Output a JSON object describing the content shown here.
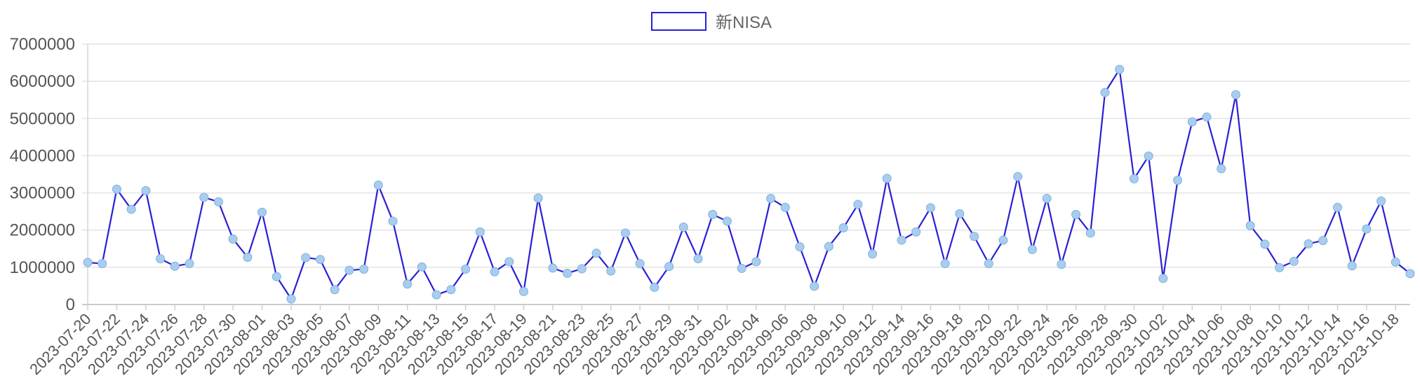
{
  "chart_data": {
    "type": "line",
    "legend": {
      "position": "top-center"
    },
    "series": [
      {
        "name": "新NISA",
        "color": "#2a1fd6",
        "point_color": "#a9cdee",
        "values": [
          1130000,
          1100000,
          3100000,
          2560000,
          3060000,
          1230000,
          1030000,
          1100000,
          2880000,
          2760000,
          1760000,
          1270000,
          2480000,
          750000,
          150000,
          1260000,
          1210000,
          400000,
          920000,
          950000,
          3210000,
          2240000,
          550000,
          1010000,
          260000,
          400000,
          950000,
          1950000,
          880000,
          1150000,
          350000,
          2860000,
          980000,
          840000,
          960000,
          1380000,
          900000,
          1920000,
          1100000,
          460000,
          1020000,
          2080000,
          1230000,
          2420000,
          2240000,
          970000,
          1150000,
          2850000,
          2610000,
          1550000,
          490000,
          1560000,
          2060000,
          2690000,
          1360000,
          3390000,
          1730000,
          1950000,
          2600000,
          1100000,
          2440000,
          1830000,
          1100000,
          1730000,
          3440000,
          1480000,
          2850000,
          1080000,
          2420000,
          1920000,
          5700000,
          6320000,
          3380000,
          3990000,
          700000,
          3340000,
          4910000,
          5040000,
          3650000,
          5640000,
          2120000,
          1620000,
          990000,
          1160000,
          1630000,
          1720000,
          2610000,
          1040000,
          2030000,
          2780000,
          1140000,
          830000
        ]
      }
    ],
    "x_start": "2023-07-20",
    "x_label_every": 2,
    "ylim": [
      0,
      7000000
    ],
    "yticks": [
      0,
      1000000,
      2000000,
      3000000,
      4000000,
      5000000,
      6000000,
      7000000
    ],
    "grid": true
  }
}
